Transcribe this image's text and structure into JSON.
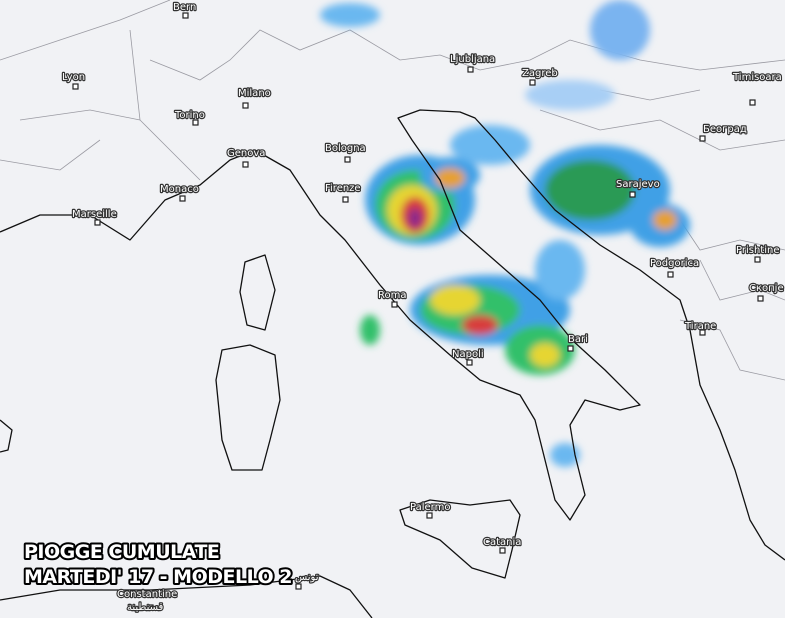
{
  "caption": {
    "line1": "PIOGGE CUMULATE",
    "line2": "MARTEDI' 17 - MODELLO 2"
  },
  "cities": [
    "Bern",
    "Lyon",
    "Milano",
    "Torino",
    "Genova",
    "Monaco",
    "Marseille",
    "Bologna",
    "Firenze",
    "Ljubljana",
    "Zagreb",
    "Timisoara",
    "Београд",
    "Sarajevo",
    "Prishtine",
    "Скопје",
    "Podgorica",
    "Tirane",
    "Roma",
    "Napoli",
    "Bari",
    "Palermo",
    "Catania",
    "Constantine",
    "قسنطينة",
    "تونس"
  ]
}
